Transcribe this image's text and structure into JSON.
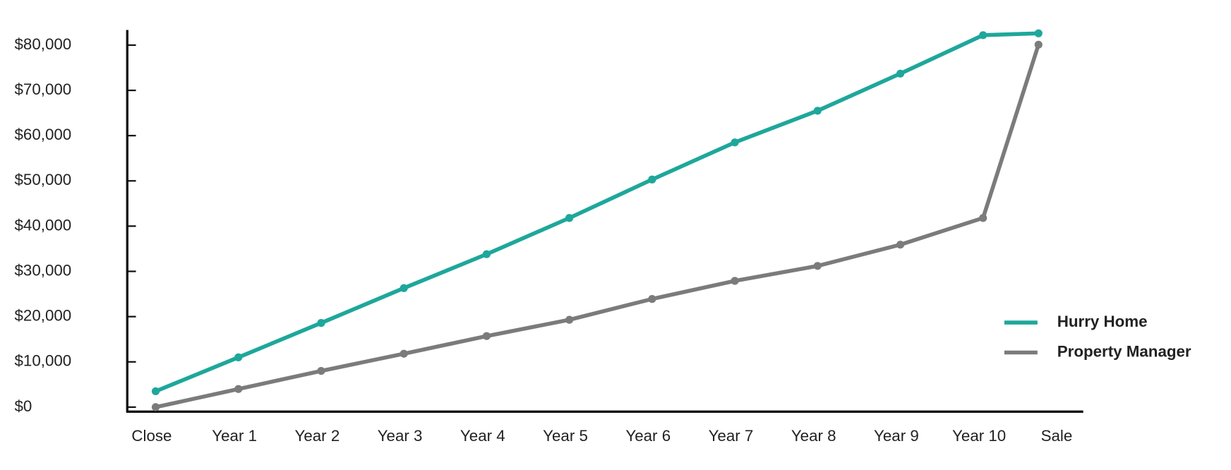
{
  "chart_data": {
    "type": "line",
    "categories": [
      "Close",
      "Year 1",
      "Year 2",
      "Year 3",
      "Year 4",
      "Year 5",
      "Year 6",
      "Year 7",
      "Year 8",
      "Year 9",
      "Year 10",
      "Sale"
    ],
    "series": [
      {
        "name": "Hurry Home",
        "color": "#1ea79b",
        "values": [
          3500,
          11000,
          18600,
          26300,
          33800,
          41800,
          50300,
          58500,
          65500,
          73700,
          82200,
          82600
        ]
      },
      {
        "name": "Property Manager",
        "color": "#7b7b7b",
        "values": [
          0,
          4000,
          8000,
          11800,
          15700,
          19300,
          23900,
          27900,
          31200,
          35900,
          41800,
          80100
        ]
      }
    ],
    "ylim": [
      -1000,
      83000
    ],
    "yticks": [
      {
        "value": 0,
        "label": "$0"
      },
      {
        "value": 10000,
        "label": "$10,000"
      },
      {
        "value": 20000,
        "label": "$20,000"
      },
      {
        "value": 30000,
        "label": "$30,000"
      },
      {
        "value": 40000,
        "label": "$40,000"
      },
      {
        "value": 50000,
        "label": "$50,000"
      },
      {
        "value": 60000,
        "label": "$60,000"
      },
      {
        "value": 70000,
        "label": "$70,000"
      },
      {
        "value": 80000,
        "label": "$80,000"
      }
    ],
    "grid": false,
    "legend": "right"
  }
}
